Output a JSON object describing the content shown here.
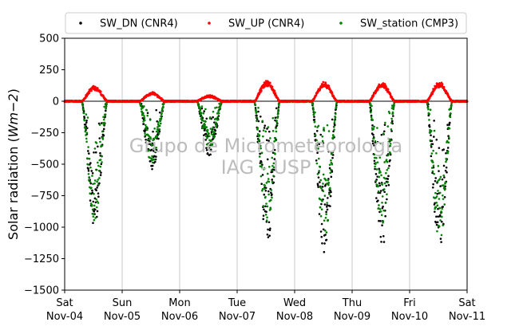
{
  "chart_data": {
    "type": "scatter",
    "ylabel": "Solar radiation (Wm−2)",
    "ylabel_parts": {
      "prefix": "Solar radiation (",
      "unit_italic": "Wm−2",
      "suffix": ")"
    },
    "ylim": [
      -1500,
      500
    ],
    "yticks": [
      500,
      250,
      0,
      -250,
      -500,
      -750,
      -1000,
      -1250,
      -1500
    ],
    "ytick_labels": [
      "500",
      "250",
      "0",
      "−250",
      "−500",
      "−750",
      "−1000",
      "−1250",
      "−1500"
    ],
    "xlim": [
      "2023-11-04",
      "2023-11-11"
    ],
    "x_ticks": [
      {
        "day": "Sat",
        "date": "Nov-04"
      },
      {
        "day": "Sun",
        "date": "Nov-05"
      },
      {
        "day": "Mon",
        "date": "Nov-06"
      },
      {
        "day": "Tue",
        "date": "Nov-07"
      },
      {
        "day": "Wed",
        "date": "Nov-08"
      },
      {
        "day": "Thu",
        "date": "Nov-09"
      },
      {
        "day": "Fri",
        "date": "Nov-10"
      },
      {
        "day": "Sat",
        "date": "Nov-11"
      }
    ],
    "grid": "vertical",
    "zero_line": true,
    "legend_position": "top",
    "watermark": [
      "Grupo de Micrometeorologia",
      "IAG - USP"
    ],
    "series": [
      {
        "name": "SW_DN (CNR4)",
        "color": "#000000",
        "daily": [
          {
            "date": "2023-11-04",
            "peak": -1000
          },
          {
            "date": "2023-11-05",
            "peak": -540
          },
          {
            "date": "2023-11-06",
            "peak": -440
          },
          {
            "date": "2023-11-07",
            "peak": -1150
          },
          {
            "date": "2023-11-08",
            "peak": -1220
          },
          {
            "date": "2023-11-09",
            "peak": -1190
          },
          {
            "date": "2023-11-10",
            "peak": -1170
          }
        ]
      },
      {
        "name": "SW_UP (CNR4)",
        "color": "#ff0000",
        "daily": [
          {
            "date": "2023-11-04",
            "peak": 120
          },
          {
            "date": "2023-11-05",
            "peak": 70
          },
          {
            "date": "2023-11-06",
            "peak": 45
          },
          {
            "date": "2023-11-07",
            "peak": 160
          },
          {
            "date": "2023-11-08",
            "peak": 150
          },
          {
            "date": "2023-11-09",
            "peak": 150
          },
          {
            "date": "2023-11-10",
            "peak": 150
          }
        ]
      },
      {
        "name": "SW_station (CMP3)",
        "color": "#008000",
        "daily": [
          {
            "date": "2023-11-04",
            "peak": -950
          },
          {
            "date": "2023-11-05",
            "peak": -500
          },
          {
            "date": "2023-11-06",
            "peak": -380
          },
          {
            "date": "2023-11-07",
            "peak": -1000
          },
          {
            "date": "2023-11-08",
            "peak": -1100
          },
          {
            "date": "2023-11-09",
            "peak": -1000
          },
          {
            "date": "2023-11-10",
            "peak": -1120
          }
        ]
      }
    ]
  }
}
